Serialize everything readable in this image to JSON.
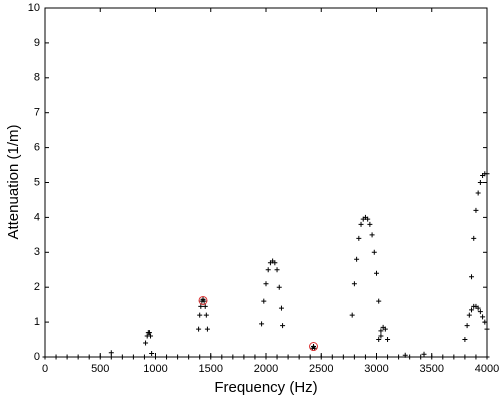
{
  "chart_data": {
    "type": "scatter",
    "xlabel": "Frequency (Hz)",
    "ylabel": "Attenuation (1/m)",
    "xlim": [
      0,
      4000
    ],
    "ylim": [
      0,
      10
    ],
    "xticks": [
      0,
      500,
      1000,
      1500,
      2000,
      2500,
      3000,
      3500,
      4000
    ],
    "yticks": [
      0,
      1,
      2,
      3,
      4,
      5,
      6,
      7,
      8,
      9,
      10
    ],
    "grid": false,
    "series": [
      {
        "color": "#000000",
        "marker": "+",
        "x": [
          0,
          100,
          200,
          300,
          400,
          500,
          600,
          700,
          800,
          900,
          1000,
          1100,
          1200,
          1300,
          1400,
          1500,
          1600,
          1700,
          1800,
          1900,
          2000,
          2100,
          2200,
          2300,
          2400,
          2500,
          2600,
          2700,
          2800,
          2900,
          3000,
          3100,
          3200,
          3300,
          3400,
          3500,
          3600,
          3700,
          3800,
          3900,
          4000,
          600,
          910,
          925,
          935,
          945,
          955,
          965,
          1390,
          1400,
          1410,
          1420,
          1430,
          1440,
          1450,
          1460,
          1470,
          1960,
          1980,
          2000,
          2020,
          2040,
          2060,
          2080,
          2100,
          2120,
          2140,
          2150,
          2420,
          2430,
          2440,
          2780,
          2800,
          2820,
          2840,
          2860,
          2880,
          2900,
          2920,
          2940,
          2960,
          2980,
          3000,
          3020,
          3040,
          3020,
          3040,
          3060,
          3080,
          3100,
          3260,
          3430,
          3860,
          3880,
          3900,
          3920,
          3940,
          3960,
          3980,
          4000,
          3800,
          3820,
          3840,
          3860,
          3880,
          3900,
          3920,
          3940,
          3960,
          3980,
          4000
        ],
        "values": [
          0,
          0,
          0,
          0,
          0,
          0,
          0,
          0,
          0,
          0,
          0,
          0,
          0,
          0,
          0,
          0,
          0,
          0,
          0,
          0,
          0,
          0,
          0,
          0,
          0,
          0,
          0,
          0,
          0,
          0,
          0,
          0,
          0,
          0,
          0,
          0,
          0,
          0,
          0,
          0,
          0,
          0.12,
          0.4,
          0.6,
          0.7,
          0.7,
          0.6,
          0.1,
          0.8,
          1.2,
          1.45,
          1.6,
          1.65,
          1.6,
          1.45,
          1.2,
          0.8,
          0.95,
          1.6,
          2.1,
          2.5,
          2.7,
          2.75,
          2.7,
          2.5,
          2.0,
          1.4,
          0.9,
          0.25,
          0.3,
          0.25,
          1.2,
          2.1,
          2.8,
          3.4,
          3.8,
          3.95,
          4.0,
          3.95,
          3.8,
          3.5,
          3.0,
          2.4,
          1.6,
          0.6,
          0.5,
          0.75,
          0.85,
          0.8,
          0.5,
          0.05,
          0.08,
          2.3,
          3.4,
          4.2,
          4.7,
          5.0,
          5.2,
          5.25,
          5.25,
          0.5,
          0.9,
          1.2,
          1.35,
          1.45,
          1.45,
          1.4,
          1.3,
          1.15,
          1.0,
          0.8
        ]
      },
      {
        "color": "#dd3333",
        "marker": "o",
        "x": [
          1430,
          2430
        ],
        "values": [
          1.62,
          0.3
        ]
      }
    ]
  }
}
